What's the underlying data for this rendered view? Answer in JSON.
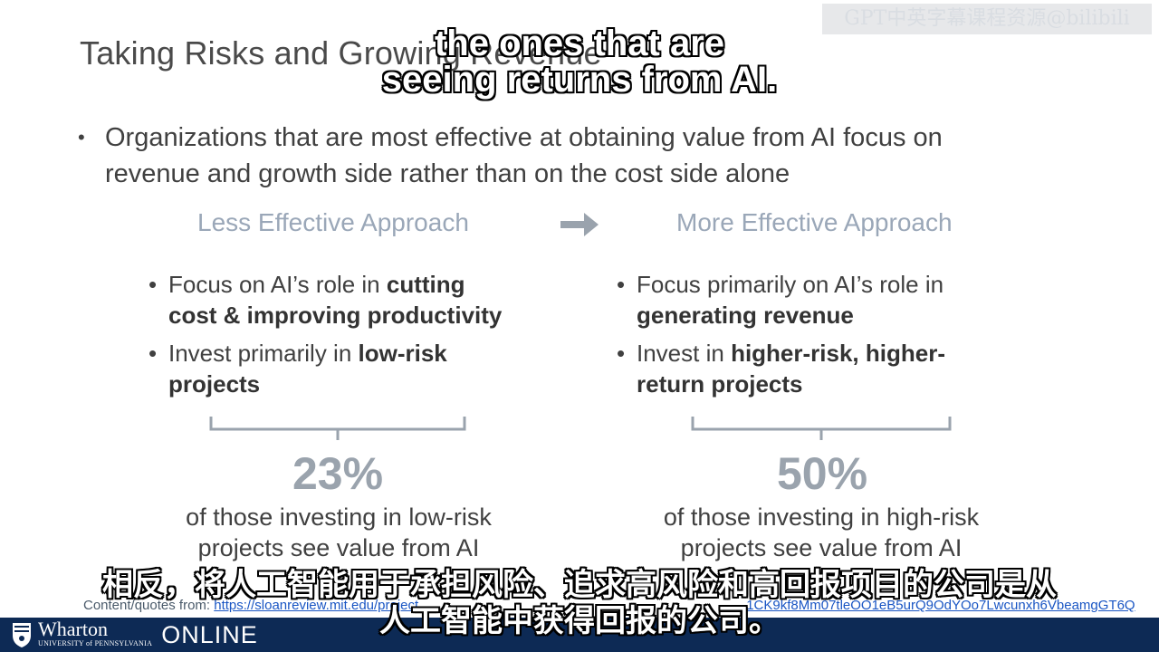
{
  "slide": {
    "title": "Taking Risks and Growing Revenue",
    "main_bullet": {
      "line1": "Organizations that are most effective at obtaining value from AI focus on",
      "line2": "revenue and growth side rather than on the cost side alone"
    },
    "left": {
      "header": "Less Effective Approach",
      "items": [
        {
          "l1_plain": "Focus on AI’s role in ",
          "l1_bold": "cutting",
          "l2_bold": "cost & improving productivity"
        },
        {
          "l1_plain": "Invest primarily in ",
          "l1_bold": "low-risk",
          "l2_bold": "projects"
        }
      ],
      "percent": "23%",
      "desc_line1": "of those investing in low-risk",
      "desc_line2": "projects see value from AI"
    },
    "right": {
      "header": "More Effective Approach",
      "items": [
        {
          "l1_plain": "Focus primarily on AI’s role in",
          "l2_bold": "generating revenue"
        },
        {
          "l1_plain": "Invest in ",
          "l1_bold": "higher-risk, higher-",
          "l2_bold": "return projects"
        }
      ],
      "percent": "50%",
      "desc_line1": "of those investing in high-risk",
      "desc_line2": "projects see value from AI"
    },
    "source": {
      "label": "Content/quotes from: ",
      "link_start": "https://sloanreview.mit.edu/project",
      "link_end": "1CK9kf8Mm07tleOO1eB5urQ9OdYOo7Lwcunxh6VbeamgGT6Q"
    }
  },
  "footer": {
    "brand": "Wharton",
    "brand_sub": "UNIVERSITY of PENNSYLVANIA",
    "online": "ONLINE"
  },
  "watermark": "GPT中英字幕课程资源@bilibili",
  "subtitles": {
    "en_line1": "the ones that are",
    "en_line2": "seeing returns from AI.",
    "zh_line1": "相反，将人工智能用于承担风险、追求高风险和高回报项目的公司是从",
    "zh_line2": "人工智能中获得回报的公司。"
  },
  "colors": {
    "footer_bar": "#0d2a55",
    "header_text": "#9aa7b8",
    "percent_text": "#9aa3ad",
    "link": "#1a56c4"
  }
}
